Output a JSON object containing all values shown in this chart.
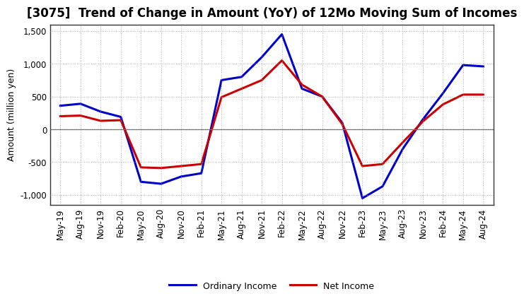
{
  "title": "[3075]  Trend of Change in Amount (YoY) of 12Mo Moving Sum of Incomes",
  "ylabel": "Amount (million yen)",
  "x_labels": [
    "May-19",
    "Aug-19",
    "Nov-19",
    "Feb-20",
    "May-20",
    "Aug-20",
    "Nov-20",
    "Feb-21",
    "May-21",
    "Aug-21",
    "Nov-21",
    "Feb-22",
    "May-22",
    "Aug-22",
    "Nov-22",
    "Feb-23",
    "May-23",
    "Aug-23",
    "Nov-23",
    "Feb-24",
    "May-24",
    "Aug-24"
  ],
  "ordinary_income": [
    360,
    390,
    270,
    190,
    -800,
    -830,
    -720,
    -670,
    750,
    800,
    1100,
    1450,
    620,
    500,
    100,
    -1050,
    -870,
    -300,
    150,
    550,
    980,
    960
  ],
  "net_income": [
    200,
    210,
    130,
    140,
    -580,
    -590,
    -560,
    -530,
    490,
    620,
    750,
    1050,
    680,
    500,
    80,
    -560,
    -530,
    -200,
    120,
    380,
    530,
    530
  ],
  "ordinary_income_color": "#0000cc",
  "net_income_color": "#cc0000",
  "ylim": [
    -1150,
    1600
  ],
  "yticks": [
    -1000,
    -500,
    0,
    500,
    1000,
    1500
  ],
  "ytick_labels": [
    "-1,000",
    "-500",
    "0",
    "500",
    "1,000",
    "1,500"
  ],
  "background_color": "#ffffff",
  "grid_color": "#999999",
  "line_width": 2.2,
  "legend_labels": [
    "Ordinary Income",
    "Net Income"
  ],
  "title_fontsize": 12,
  "axis_fontsize": 9,
  "tick_fontsize": 8.5
}
